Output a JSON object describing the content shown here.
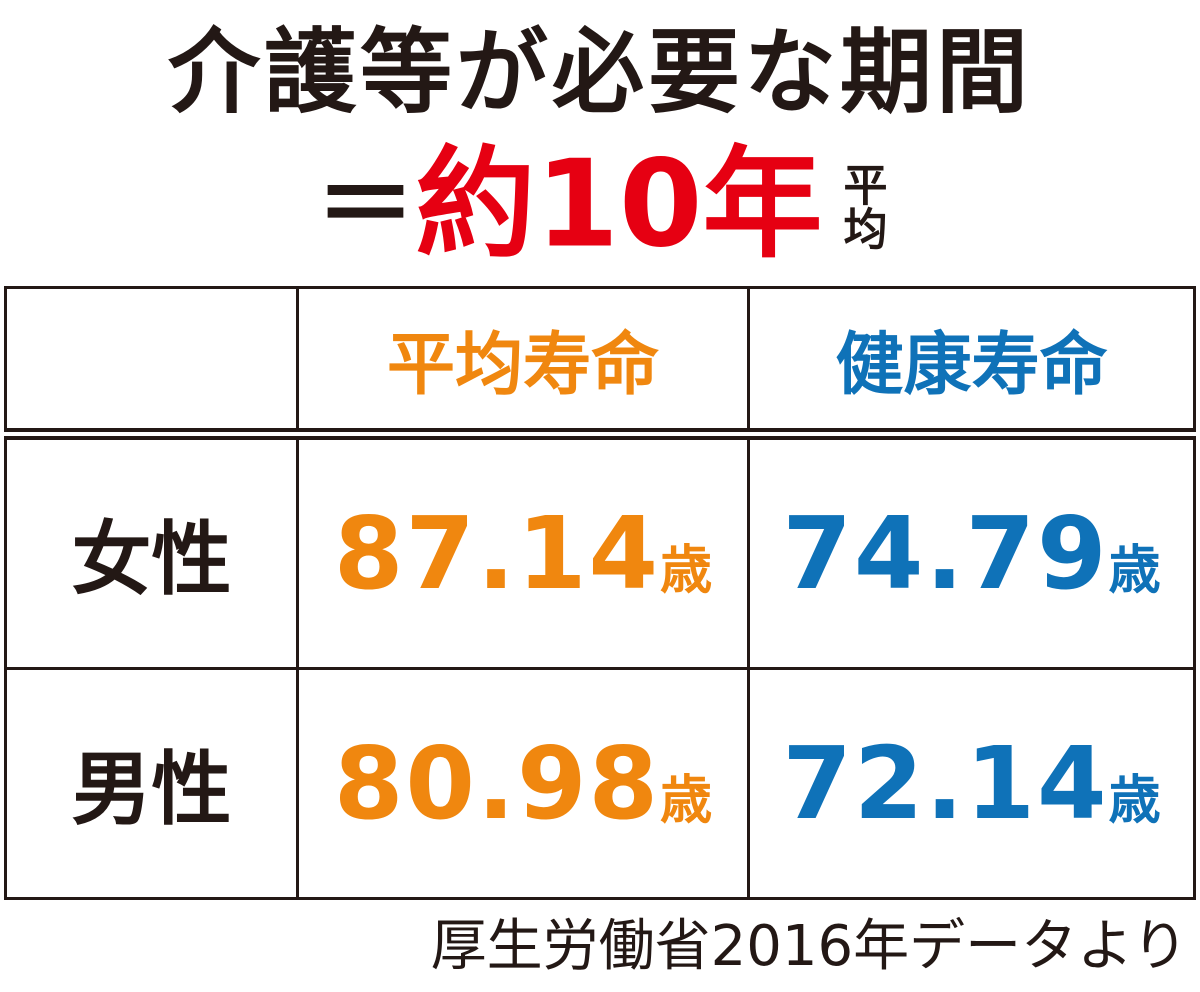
{
  "title": {
    "line1": "介護等が必要な期間",
    "equals": "＝",
    "highlight": "約10年",
    "note": "平均"
  },
  "table": {
    "header": [
      "平均寿命",
      "健康寿命"
    ],
    "rows": [
      {
        "label": "女性",
        "cells": [
          {
            "value": 87.14,
            "unit": "歳"
          },
          {
            "value": 74.79,
            "unit": "歳"
          }
        ]
      },
      {
        "label": "男性",
        "cells": [
          {
            "value": 80.98,
            "unit": "歳"
          },
          {
            "value": 72.14,
            "unit": "歳"
          }
        ]
      }
    ]
  },
  "source": "厚生労働省2016年データより"
}
